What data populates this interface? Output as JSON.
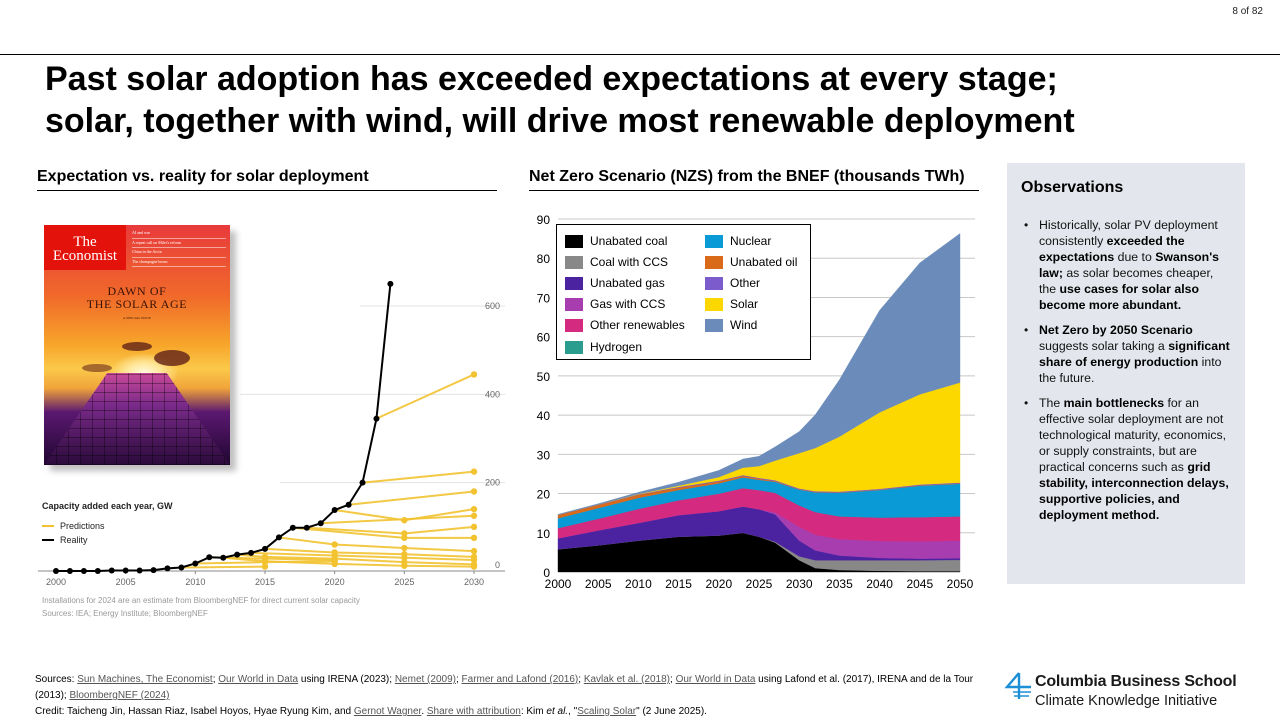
{
  "page_number": "8 of 82",
  "title_line1": "Past solar adoption has exceeded expectations at every stage;",
  "title_line2": "solar, together with wind, will drive most renewable deployment",
  "left_section_title": "Expectation vs. reality for solar deployment",
  "right_section_title": "Net Zero Scenario (NZS) from the BNEF (thousands TWh)",
  "cover": {
    "logo_line1": "The",
    "logo_line2": "Economist",
    "headlines": [
      "AI and war",
      "A repeat call on Milei's reform",
      "China in the Arctic",
      "The champagne boom",
      "Issue date"
    ],
    "headline_1": "DAWN OF",
    "headline_2": "THE SOLAR AGE",
    "sub": "A SPECIAL ISSUE"
  },
  "observations": {
    "title": "Observations",
    "items": [
      {
        "segments": [
          {
            "t": "Historically, solar PV deployment consistently ",
            "b": false
          },
          {
            "t": "exceeded the expectations",
            "b": true
          },
          {
            "t": " due to ",
            "b": false
          },
          {
            "t": "Swanson's law;",
            "b": true
          },
          {
            "t": " as solar becomes cheaper, the ",
            "b": false
          },
          {
            "t": "use cases for solar also become more abundant.",
            "b": true
          }
        ]
      },
      {
        "segments": [
          {
            "t": "Net Zero by 2050 Scenario",
            "b": true
          },
          {
            "t": " suggests solar taking a ",
            "b": false
          },
          {
            "t": "significant share of energy production",
            "b": true
          },
          {
            "t": " into the future.",
            "b": false
          }
        ]
      },
      {
        "segments": [
          {
            "t": "The ",
            "b": false
          },
          {
            "t": "main bottlenecks",
            "b": true
          },
          {
            "t": " for an effective solar deployment are not technological maturity, economics, or supply constraints, but are practical concerns such as ",
            "b": false
          },
          {
            "t": "grid stability, interconnection delays, supportive policies, and deployment method.",
            "b": true
          }
        ]
      }
    ]
  },
  "footer": {
    "sources_label": "Sources: ",
    "sources": [
      {
        "t": "Sun Machines, The Economist",
        "link": true
      },
      {
        "t": "; ",
        "link": false
      },
      {
        "t": "Our World in Data",
        "link": true
      },
      {
        "t": " using IRENA (2023); ",
        "link": false
      },
      {
        "t": "Nemet (2009)",
        "link": true
      },
      {
        "t": "; ",
        "link": false
      },
      {
        "t": "Farmer and Lafond (2016)",
        "link": true
      },
      {
        "t": "; ",
        "link": false
      },
      {
        "t": "Kavlak et al. (2018)",
        "link": true
      },
      {
        "t": "; ",
        "link": false
      },
      {
        "t": "Our World in Data",
        "link": true
      },
      {
        "t": " using Lafond et al. (2017), IRENA and de la Tour (2013); ",
        "link": false
      },
      {
        "t": "BloombergNEF (2024)",
        "link": true
      }
    ],
    "credit": [
      {
        "t": "Credit: Taicheng Jin, Hassan Riaz, Isabel Hoyos, Hyae Ryung Kim, and ",
        "link": false,
        "i": false
      },
      {
        "t": "Gernot Wagner",
        "link": true,
        "i": false
      },
      {
        "t": ". ",
        "link": false,
        "i": false
      },
      {
        "t": "Share with attribution",
        "link": true,
        "i": false
      },
      {
        "t": ": Kim ",
        "link": false,
        "i": false
      },
      {
        "t": "et al.",
        "link": false,
        "i": true
      },
      {
        "t": ", \"",
        "link": false,
        "i": false
      },
      {
        "t": "Scaling Solar",
        "link": true,
        "i": false
      },
      {
        "t": "\" (2 June 2025).",
        "link": false,
        "i": false
      }
    ]
  },
  "logo": {
    "name": "Columbia Business School",
    "sub": "Climate Knowledge Initiative",
    "accent": "#1d8fd6"
  },
  "chart_data": [
    {
      "type": "line",
      "title": "Capacity added each year, GW",
      "xlabel": "",
      "ylabel": "GW",
      "x_ticks": [
        2000,
        2005,
        2010,
        2015,
        2020,
        2025,
        2030
      ],
      "y_ticks": [
        0,
        200,
        400,
        600
      ],
      "xlim": [
        2000,
        2030
      ],
      "ylim": [
        0,
        650
      ],
      "grid": true,
      "legend": [
        {
          "name": "Predictions",
          "color": "#f2c230"
        },
        {
          "name": "Reality",
          "color": "#000000"
        }
      ],
      "legend_position": "left",
      "notes": [
        "Installations for 2024 are an estimate from BloombergNEF for direct current solar capacity",
        "Sources: IEA; Energy Institute; BloombergNEF"
      ],
      "reality": {
        "x": [
          2000,
          2001,
          2002,
          2003,
          2004,
          2005,
          2006,
          2007,
          2008,
          2009,
          2010,
          2011,
          2012,
          2013,
          2014,
          2015,
          2016,
          2017,
          2018,
          2019,
          2020,
          2021,
          2022,
          2023,
          2024
        ],
        "y": [
          0,
          0,
          0,
          0,
          1,
          1,
          1,
          2,
          6,
          8,
          17,
          31,
          30,
          37,
          41,
          50,
          76,
          98,
          98,
          108,
          138,
          150,
          200,
          345,
          650
        ]
      },
      "predictions": [
        {
          "x": [
            2009,
            2015
          ],
          "y": [
            8,
            10
          ]
        },
        {
          "x": [
            2010,
            2015,
            2020
          ],
          "y": [
            17,
            20,
            22
          ]
        },
        {
          "x": [
            2011,
            2015,
            2020
          ],
          "y": [
            31,
            28,
            25
          ]
        },
        {
          "x": [
            2012,
            2015,
            2020,
            2025,
            2030
          ],
          "y": [
            30,
            22,
            16,
            12,
            10
          ]
        },
        {
          "x": [
            2013,
            2015,
            2020,
            2025,
            2030
          ],
          "y": [
            37,
            32,
            28,
            20,
            15
          ]
        },
        {
          "x": [
            2014,
            2020,
            2025,
            2030
          ],
          "y": [
            41,
            35,
            30,
            25
          ]
        },
        {
          "x": [
            2015,
            2020,
            2025,
            2030
          ],
          "y": [
            50,
            42,
            38,
            32
          ]
        },
        {
          "x": [
            2016,
            2020,
            2025,
            2030
          ],
          "y": [
            76,
            60,
            52,
            45
          ]
        },
        {
          "x": [
            2017,
            2025,
            2030
          ],
          "y": [
            98,
            75,
            75
          ]
        },
        {
          "x": [
            2018,
            2025,
            2030
          ],
          "y": [
            98,
            85,
            100
          ]
        },
        {
          "x": [
            2019,
            2030
          ],
          "y": [
            108,
            125
          ]
        },
        {
          "x": [
            2020,
            2025,
            2030
          ],
          "y": [
            138,
            115,
            140
          ]
        },
        {
          "x": [
            2021,
            2030
          ],
          "y": [
            150,
            180
          ]
        },
        {
          "x": [
            2022,
            2030
          ],
          "y": [
            200,
            225
          ]
        },
        {
          "x": [
            2023,
            2030
          ],
          "y": [
            345,
            445
          ]
        }
      ]
    },
    {
      "type": "area",
      "title": "Net Zero Scenario (NZS) from the BNEF (thousands TWh)",
      "xlabel": "",
      "ylabel": "thousands TWh",
      "x_ticks": [
        2000,
        2005,
        2010,
        2015,
        2020,
        2025,
        2030,
        2035,
        2040,
        2045,
        2050
      ],
      "y_ticks": [
        0,
        10,
        20,
        30,
        40,
        50,
        60,
        70,
        80,
        90
      ],
      "xlim": [
        2000,
        2050
      ],
      "ylim": [
        0,
        90
      ],
      "grid": true,
      "legend_position": "top-left",
      "x": [
        2000,
        2005,
        2010,
        2015,
        2020,
        2023,
        2025,
        2027,
        2030,
        2032,
        2035,
        2040,
        2045,
        2050
      ],
      "series": [
        {
          "name": "Unabated coal",
          "color": "#000000",
          "values": [
            5.8,
            6.8,
            8.0,
            9.0,
            9.3,
            10.0,
            9.0,
            7.5,
            3.0,
            1.0,
            0.5,
            0.3,
            0.2,
            0.2
          ]
        },
        {
          "name": "Coal with CCS",
          "color": "#888888",
          "values": [
            0,
            0,
            0,
            0,
            0,
            0,
            0,
            0.2,
            1.0,
            2.0,
            2.5,
            2.7,
            2.8,
            2.9
          ]
        },
        {
          "name": "Unabated gas",
          "color": "#4b23a0",
          "values": [
            2.8,
            3.8,
            4.5,
            5.5,
            6.2,
            6.7,
            7.0,
            7.0,
            4.0,
            2.5,
            1.2,
            0.6,
            0.4,
            0.4
          ]
        },
        {
          "name": "Gas with CCS",
          "color": "#a83db0",
          "values": [
            0,
            0,
            0,
            0,
            0,
            0,
            0,
            0.5,
            3.5,
            4.0,
            4.2,
            4.3,
            4.4,
            4.5
          ]
        },
        {
          "name": "Other renewables",
          "color": "#d42a7f",
          "values": [
            2.6,
            3.0,
            3.6,
            3.8,
            4.5,
            4.7,
            4.9,
            5.0,
            5.5,
            5.8,
            5.8,
            6.0,
            6.2,
            6.2
          ]
        },
        {
          "name": "Hydrogen",
          "color": "#2a9d8f",
          "values": [
            0,
            0,
            0,
            0,
            0,
            0,
            0,
            0,
            0,
            0,
            0,
            0,
            0,
            0
          ]
        },
        {
          "name": "Nuclear",
          "color": "#0a9ad6",
          "values": [
            2.5,
            2.7,
            2.8,
            2.6,
            2.6,
            2.7,
            2.6,
            2.8,
            4.0,
            5.0,
            6.0,
            7.0,
            8.0,
            8.3
          ]
        },
        {
          "name": "Unabated oil",
          "color": "#d96a1a",
          "values": [
            0.8,
            0.8,
            0.8,
            0.6,
            0.5,
            0.4,
            0.3,
            0.2,
            0.1,
            0.1,
            0.1,
            0.1,
            0.1,
            0.1
          ]
        },
        {
          "name": "Other",
          "color": "#7c5ccc",
          "values": [
            0.1,
            0.1,
            0.1,
            0.2,
            0.2,
            0.2,
            0.2,
            0.2,
            0.2,
            0.2,
            0.2,
            0.2,
            0.2,
            0.2
          ]
        },
        {
          "name": "Solar",
          "color": "#fcd800",
          "values": [
            0,
            0,
            0.1,
            0.3,
            0.9,
            1.9,
            3.0,
            5.0,
            9.0,
            11.0,
            14.0,
            19.5,
            23.0,
            25.5
          ]
        },
        {
          "name": "Wind",
          "color": "#6b8cba",
          "values": [
            0.1,
            0.2,
            0.4,
            0.9,
            1.7,
            2.2,
            2.5,
            3.5,
            5.5,
            8.5,
            14.5,
            26.0,
            33.5,
            38.0
          ]
        }
      ]
    }
  ]
}
